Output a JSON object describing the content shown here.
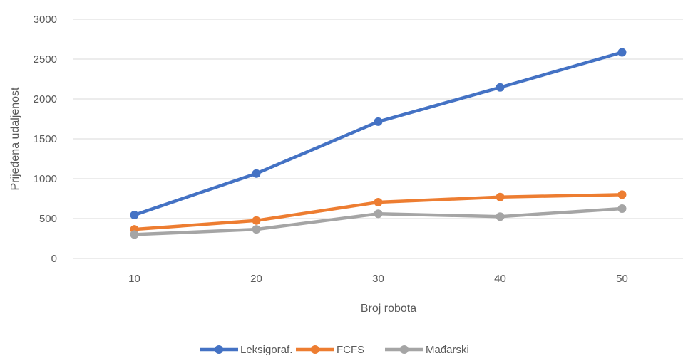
{
  "chart_data": {
    "type": "line",
    "title": "",
    "xlabel": "Broj robota",
    "ylabel": "Prijeđena udaljenost",
    "categories": [
      "10",
      "20",
      "30",
      "40",
      "50"
    ],
    "ylim": [
      0,
      3000
    ],
    "yticks": [
      "0",
      "500",
      "1000",
      "1500",
      "2000",
      "2500",
      "3000"
    ],
    "grid": true,
    "legend_position": "bottom",
    "series": [
      {
        "name": "Leksigoraf.",
        "color": "#4472C4",
        "values": [
          545,
          1065,
          1715,
          2145,
          2585
        ]
      },
      {
        "name": "FCFS",
        "color": "#ED7D31",
        "values": [
          365,
          475,
          705,
          770,
          800
        ]
      },
      {
        "name": "Mađarski",
        "color": "#A5A5A5",
        "values": [
          300,
          365,
          560,
          525,
          625
        ]
      }
    ]
  }
}
